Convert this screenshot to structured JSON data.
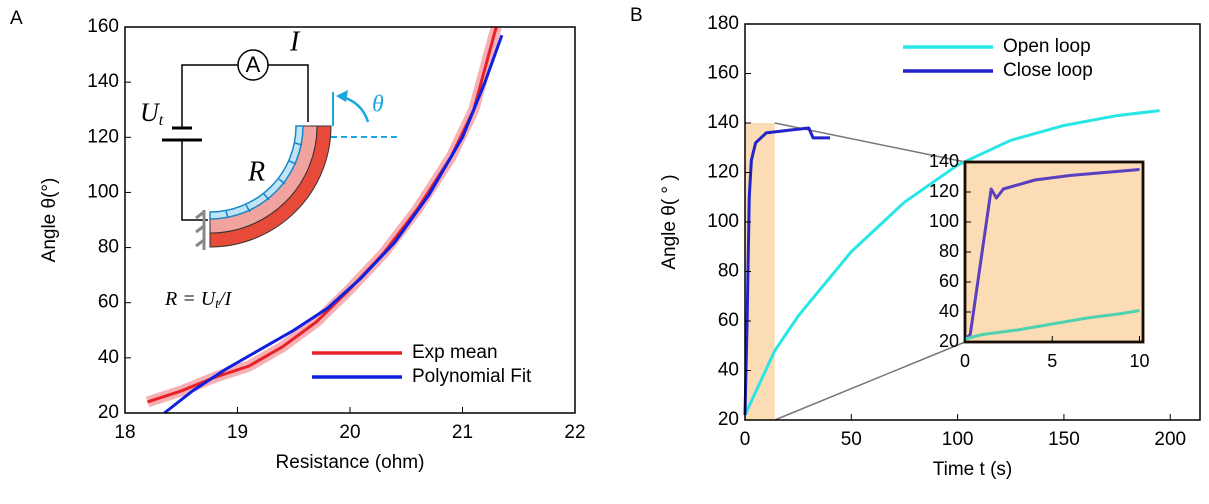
{
  "chart_data": [
    {
      "type": "line",
      "panel_label": "A",
      "xlabel": "Resistance (ohm)",
      "ylabel": "Angle  θ(°)",
      "xlim": [
        18,
        22
      ],
      "ylim": [
        20,
        160
      ],
      "xticks": [
        18,
        19,
        20,
        21,
        22
      ],
      "yticks": [
        20,
        40,
        60,
        80,
        100,
        120,
        140,
        160
      ],
      "annotations": [
        "A",
        "I",
        "U",
        "t",
        "R",
        "θ",
        "R = U",
        "t",
        "/I"
      ],
      "series": [
        {
          "name": "Exp mean",
          "color": "#e8202a",
          "x": [
            18.2,
            18.5,
            18.8,
            19.1,
            19.4,
            19.7,
            20.0,
            20.3,
            20.6,
            20.9,
            21.1,
            21.3
          ],
          "values": [
            24,
            28,
            33,
            37,
            44,
            53,
            65,
            78,
            94,
            113,
            130,
            160
          ]
        },
        {
          "name": "Polynomial Fit",
          "color": "#1020e0",
          "x": [
            18.35,
            18.6,
            18.9,
            19.2,
            19.5,
            19.8,
            20.1,
            20.4,
            20.7,
            21.0,
            21.2,
            21.35
          ],
          "values": [
            20,
            28,
            36,
            43,
            50,
            58,
            69,
            82,
            99,
            120,
            140,
            157
          ]
        }
      ]
    },
    {
      "type": "line",
      "panel_label": "B",
      "xlabel": "Time t (s)",
      "ylabel": "Angle  θ( ° )",
      "xlim": [
        0,
        214
      ],
      "ylim": [
        20,
        180
      ],
      "xticks": [
        0,
        50,
        100,
        150,
        200
      ],
      "yticks": [
        20,
        40,
        60,
        80,
        100,
        120,
        140,
        160,
        180
      ],
      "highlight": {
        "x": [
          0,
          14
        ],
        "y": [
          20,
          140
        ],
        "color": "#fbdcb5"
      },
      "series": [
        {
          "name": "Open loop",
          "color": "#28e6e6",
          "x": [
            0,
            14,
            25,
            50,
            75,
            100,
            125,
            150,
            175,
            195
          ],
          "values": [
            22,
            48,
            62,
            88,
            108,
            123,
            133,
            139,
            143,
            145
          ]
        },
        {
          "name": "Close loop",
          "color": "#2222cc",
          "x": [
            0,
            1,
            2,
            3,
            5,
            10,
            20,
            30,
            32,
            40
          ],
          "values": [
            22,
            60,
            110,
            125,
            132,
            136,
            137,
            138,
            134,
            134
          ]
        }
      ]
    },
    {
      "type": "line",
      "xlim": [
        0,
        10.2
      ],
      "ylim": [
        20,
        140
      ],
      "xticks": [
        0,
        5,
        10
      ],
      "yticks": [
        20,
        40,
        60,
        80,
        100,
        120,
        140
      ],
      "background": "#fbdcb5",
      "series": [
        {
          "color": "#5a3fc0",
          "x": [
            0,
            0.3,
            1.5,
            1.8,
            2.2,
            4,
            6,
            8,
            10
          ],
          "values": [
            22,
            25,
            122,
            116,
            122,
            128,
            131,
            133,
            135
          ]
        },
        {
          "color": "#4fd2b0",
          "x": [
            0,
            1,
            3,
            5,
            7,
            9,
            10
          ],
          "values": [
            22,
            25,
            28,
            32,
            36,
            39,
            41
          ]
        }
      ]
    }
  ]
}
